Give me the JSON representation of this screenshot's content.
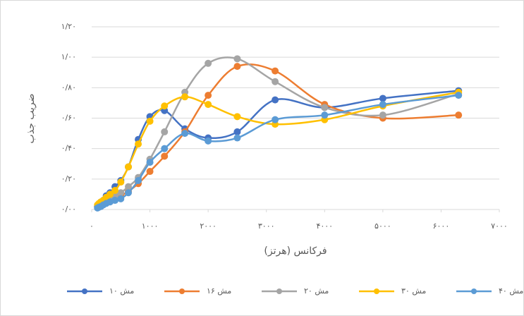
{
  "chart_data": {
    "type": "line",
    "x_label": "فرکانس (هرتز)",
    "y_label": "ضریب جذب",
    "x": [
      100,
      125,
      160,
      200,
      250,
      315,
      400,
      500,
      630,
      800,
      1000,
      1250,
      1600,
      2000,
      2500,
      3150,
      4000,
      5000,
      6300
    ],
    "series": [
      {
        "name": "مش ۱۰",
        "color": "#4472c4",
        "values": [
          0.02,
          0.03,
          0.05,
          0.06,
          0.09,
          0.11,
          0.15,
          0.19,
          0.28,
          0.46,
          0.61,
          0.65,
          0.53,
          0.47,
          0.51,
          0.72,
          0.67,
          0.73,
          0.78
        ]
      },
      {
        "name": "مش ۱۶",
        "color": "#ed7d31",
        "values": [
          0.02,
          0.02,
          0.03,
          0.04,
          0.05,
          0.06,
          0.07,
          0.09,
          0.12,
          0.17,
          0.25,
          0.35,
          0.51,
          0.75,
          0.94,
          0.91,
          0.69,
          0.6,
          0.62
        ]
      },
      {
        "name": "مش ۲۰",
        "color": "#a5a5a5",
        "values": [
          0.02,
          0.02,
          0.03,
          0.04,
          0.05,
          0.07,
          0.09,
          0.11,
          0.15,
          0.21,
          0.33,
          0.51,
          0.77,
          0.96,
          0.99,
          0.84,
          0.67,
          0.62,
          0.76
        ]
      },
      {
        "name": "مش ۳۰",
        "color": "#ffc000",
        "values": [
          0.03,
          0.04,
          0.05,
          0.06,
          0.08,
          0.1,
          0.125,
          0.18,
          0.28,
          0.43,
          0.58,
          0.68,
          0.74,
          0.69,
          0.61,
          0.56,
          0.59,
          0.68,
          0.77
        ]
      },
      {
        "name": "مش ۴۰",
        "color": "#5b9bd5",
        "values": [
          0.01,
          0.015,
          0.02,
          0.03,
          0.04,
          0.05,
          0.06,
          0.07,
          0.11,
          0.19,
          0.31,
          0.4,
          0.5,
          0.45,
          0.47,
          0.59,
          0.62,
          0.69,
          0.75
        ]
      }
    ],
    "xlim": [
      0,
      7000
    ],
    "xticks": [
      {
        "value": 0,
        "label": "۰"
      },
      {
        "value": 1000,
        "label": "۱۰۰۰"
      },
      {
        "value": 2000,
        "label": "۲۰۰۰"
      },
      {
        "value": 3000,
        "label": "۳۰۰۰"
      },
      {
        "value": 4000,
        "label": "۴۰۰۰"
      },
      {
        "value": 5000,
        "label": "۵۰۰۰"
      },
      {
        "value": 6000,
        "label": "۶۰۰۰"
      },
      {
        "value": 7000,
        "label": "۷۰۰۰"
      }
    ],
    "ylim": [
      0,
      1.2
    ],
    "yticks": [
      {
        "value": 0,
        "label": "۰/۰۰"
      },
      {
        "value": 0.2,
        "label": "۰/۲۰"
      },
      {
        "value": 0.4,
        "label": "۰/۴۰"
      },
      {
        "value": 0.6,
        "label": "۰/۶۰"
      },
      {
        "value": 0.8,
        "label": "۰/۸۰"
      },
      {
        "value": 1.0,
        "label": "۱/۰۰"
      },
      {
        "value": 1.2,
        "label": "۱/۲۰"
      }
    ],
    "grid": true,
    "smooth": true,
    "legend": "bottom"
  }
}
